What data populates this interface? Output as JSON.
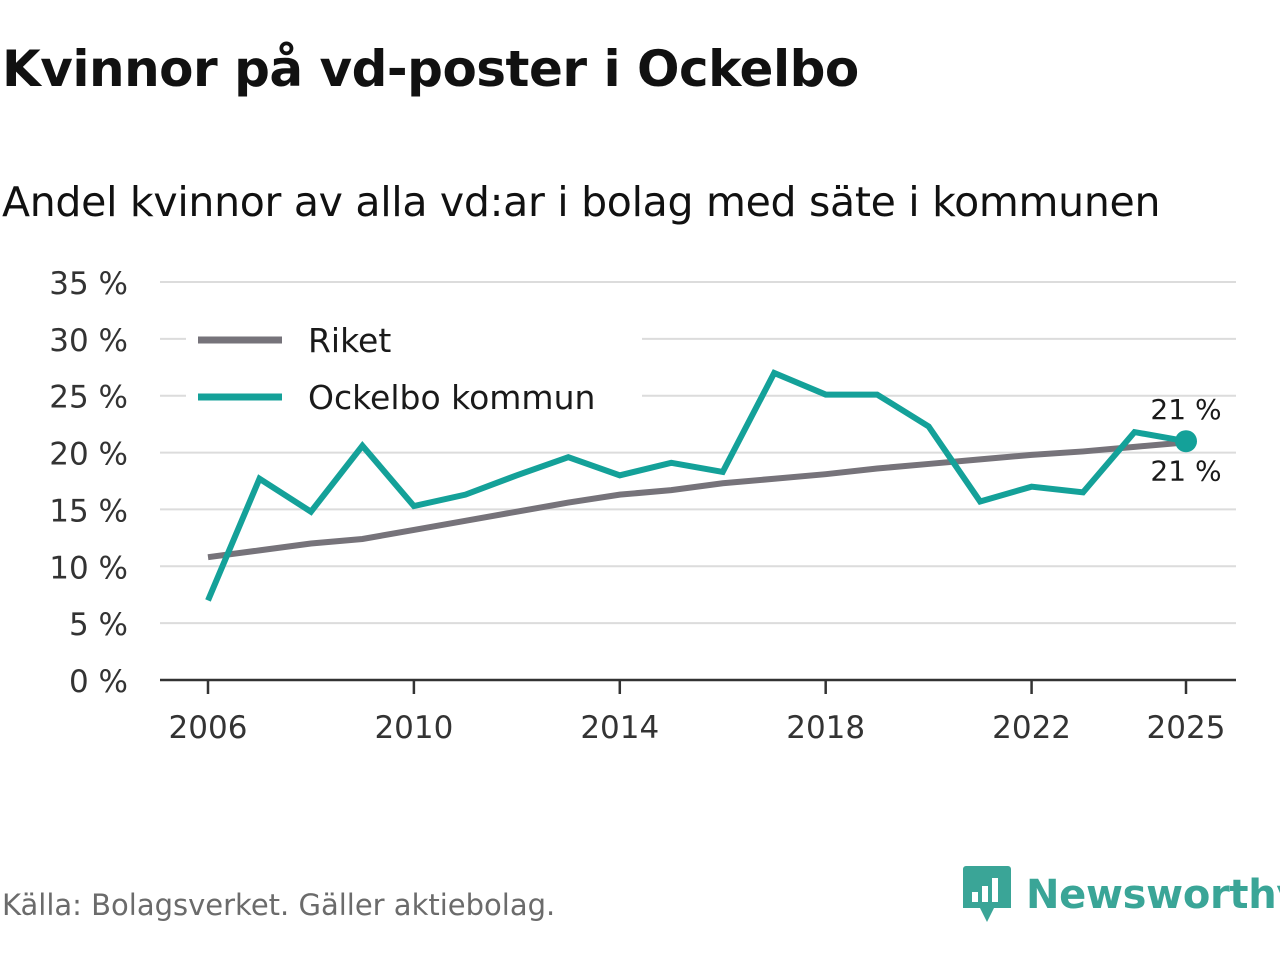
{
  "header": {
    "title": "Kvinnor på vd-poster i Ockelbo",
    "subtitle": "Andel kvinnor av alla vd:ar i bolag med säte i kommunen"
  },
  "footer": {
    "source": "Källa: Bolagsverket. Gäller aktiebolag.",
    "brand": "Newsworthy",
    "brand_icon": "newsworthy-logo-icon"
  },
  "colors": {
    "riket": "#76737a",
    "ockelbo": "#14a199",
    "grid": "#dcdcdc",
    "axis": "#333333",
    "brand": "#3aa597"
  },
  "chart_data": {
    "type": "line",
    "title": "Kvinnor på vd-poster i Ockelbo",
    "subtitle": "Andel kvinnor av alla vd:ar i bolag med säte i kommunen",
    "xlabel": "",
    "ylabel": "",
    "x": [
      2006,
      2007,
      2008,
      2009,
      2010,
      2011,
      2012,
      2013,
      2014,
      2015,
      2016,
      2017,
      2018,
      2019,
      2020,
      2021,
      2022,
      2023,
      2024,
      2025
    ],
    "x_ticks": [
      "2006",
      "2010",
      "2014",
      "2018",
      "2022",
      "2025"
    ],
    "y_ticks": [
      "0 %",
      "5 %",
      "10 %",
      "15 %",
      "20 %",
      "25 %",
      "30 %",
      "35 %"
    ],
    "ylim": [
      0,
      35
    ],
    "grid": true,
    "legend_position": "top-left",
    "series": [
      {
        "name": "Riket",
        "values": [
          10.8,
          11.4,
          12.0,
          12.4,
          13.2,
          14.0,
          14.8,
          15.6,
          16.3,
          16.7,
          17.3,
          17.7,
          18.1,
          18.6,
          19.0,
          19.4,
          19.8,
          20.1,
          20.5,
          20.9
        ],
        "end_label": "21 %"
      },
      {
        "name": "Ockelbo kommun",
        "values": [
          7.0,
          17.7,
          14.8,
          20.6,
          15.3,
          16.3,
          18.0,
          19.6,
          18.0,
          19.1,
          18.3,
          27.0,
          25.1,
          25.1,
          22.3,
          15.7,
          17.0,
          16.5,
          21.8,
          21.0
        ],
        "end_label": "21 %"
      }
    ]
  }
}
